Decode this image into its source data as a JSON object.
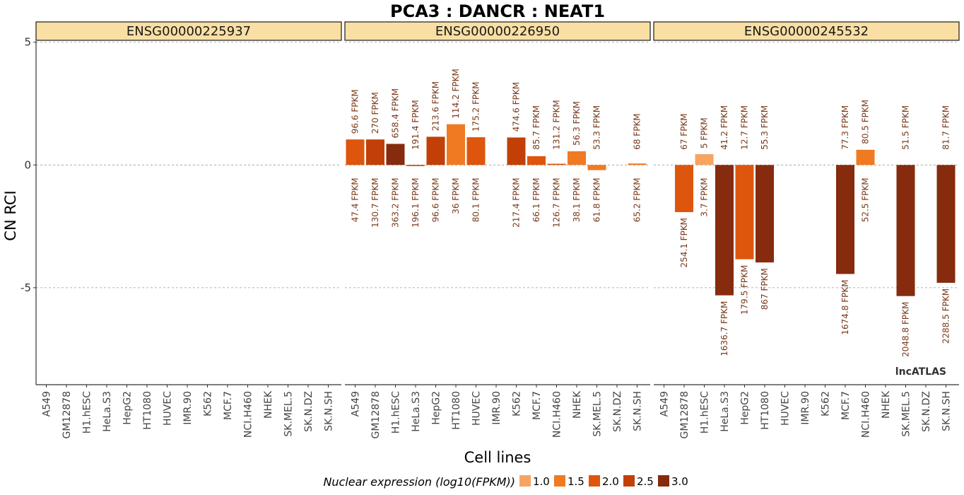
{
  "chart_data": {
    "type": "bar",
    "title": "PCA3 : DANCR : NEAT1",
    "xlabel": "Cell lines",
    "ylabel": "CN RCI",
    "yticks": [
      5,
      0,
      -5
    ],
    "ylim": [
      -8.95,
      5.05
    ],
    "grid": true,
    "categories": [
      "A549",
      "GM12878",
      "H1.hESC",
      "HeLa.S3",
      "HepG2",
      "HT1080",
      "HUVEC",
      "IMR.90",
      "K562",
      "MCF.7",
      "NCI.H460",
      "NHEK",
      "SK.MEL.5",
      "SK.N.DZ",
      "SK.N.SH"
    ],
    "panels": [
      {
        "name": "ENSG00000225937",
        "bars": []
      },
      {
        "name": "ENSG00000226950",
        "bars": [
          {
            "cell": "A549",
            "value": 1.04,
            "color_level": 2.0,
            "top_label": "96.6 FPKM",
            "bottom_label": "47.4 FPKM"
          },
          {
            "cell": "GM12878",
            "value": 1.04,
            "color_level": 2.5,
            "top_label": "270 FPKM",
            "bottom_label": "130.7 FPKM"
          },
          {
            "cell": "H1.hESC",
            "value": 0.86,
            "color_level": 3.0,
            "top_label": "658.4 FPKM",
            "bottom_label": "363.2 FPKM"
          },
          {
            "cell": "HeLa.S3",
            "value": -0.04,
            "color_level": 2.5,
            "top_label": "191.4 FPKM",
            "bottom_label": "196.1 FPKM"
          },
          {
            "cell": "HepG2",
            "value": 1.15,
            "color_level": 2.5,
            "top_label": "213.6 FPKM",
            "bottom_label": "96.6 FPKM"
          },
          {
            "cell": "HT1080",
            "value": 1.66,
            "color_level": 1.5,
            "top_label": "114.2 FPKM",
            "bottom_label": "36 FPKM"
          },
          {
            "cell": "HUVEC",
            "value": 1.13,
            "color_level": 2.0,
            "top_label": "175.2 FPKM",
            "bottom_label": "80.1 FPKM"
          },
          {
            "cell": "K562",
            "value": 1.12,
            "color_level": 2.5,
            "top_label": "474.6 FPKM",
            "bottom_label": "217.4 FPKM"
          },
          {
            "cell": "MCF.7",
            "value": 0.36,
            "color_level": 2.0,
            "top_label": "85.7 FPKM",
            "bottom_label": "66.1 FPKM"
          },
          {
            "cell": "NCI.H460",
            "value": 0.05,
            "color_level": 2.0,
            "top_label": "131.2 FPKM",
            "bottom_label": "126.7 FPKM"
          },
          {
            "cell": "NHEK",
            "value": 0.56,
            "color_level": 1.5,
            "top_label": "56.3 FPKM",
            "bottom_label": "38.1 FPKM"
          },
          {
            "cell": "SK.MEL.5",
            "value": -0.21,
            "color_level": 1.5,
            "top_label": "53.3 FPKM",
            "bottom_label": "61.8 FPKM"
          },
          {
            "cell": "SK.N.SH",
            "value": 0.06,
            "color_level": 1.5,
            "top_label": "68 FPKM",
            "bottom_label": "65.2 FPKM"
          }
        ]
      },
      {
        "name": "ENSG00000245532",
        "bars": [
          {
            "cell": "GM12878",
            "value": -1.92,
            "color_level": 2.0,
            "top_label": "67 FPKM",
            "bottom_label": "254.1 FPKM"
          },
          {
            "cell": "H1.hESC",
            "value": 0.44,
            "color_level": 1.0,
            "top_label": "5 FPKM",
            "bottom_label": "3.7 FPKM"
          },
          {
            "cell": "HeLa.S3",
            "value": -5.31,
            "color_level": 3.0,
            "top_label": "41.2 FPKM",
            "bottom_label": "1636.7 FPKM"
          },
          {
            "cell": "HepG2",
            "value": -3.84,
            "color_level": 2.0,
            "top_label": "12.7 FPKM",
            "bottom_label": "179.5 FPKM"
          },
          {
            "cell": "HT1080",
            "value": -3.97,
            "color_level": 3.0,
            "top_label": "55.3 FPKM",
            "bottom_label": "867 FPKM"
          },
          {
            "cell": "MCF.7",
            "value": -4.44,
            "color_level": 3.0,
            "top_label": "77.3 FPKM",
            "bottom_label": "1674.8 FPKM"
          },
          {
            "cell": "NCI.H460",
            "value": 0.62,
            "color_level": 1.5,
            "top_label": "80.5 FPKM",
            "bottom_label": "52.5 FPKM"
          },
          {
            "cell": "SK.MEL.5",
            "value": -5.34,
            "color_level": 3.0,
            "top_label": "51.5 FPKM",
            "bottom_label": "2048.8 FPKM"
          },
          {
            "cell": "SK.N.SH",
            "value": -4.8,
            "color_level": 3.0,
            "top_label": "81.7 FPKM",
            "bottom_label": "2288.5 FPKM"
          }
        ]
      }
    ],
    "legend": {
      "title": "Nuclear expression (log10(FPKM))",
      "position": "bottom",
      "items": [
        {
          "label": "1.0",
          "color": "#F7A463"
        },
        {
          "label": "1.5",
          "color": "#F07A22"
        },
        {
          "label": "2.0",
          "color": "#DE560D"
        },
        {
          "label": "2.5",
          "color": "#C24008"
        },
        {
          "label": "3.0",
          "color": "#862B0E"
        }
      ]
    },
    "watermark": "lncATLAS"
  },
  "colors": {
    "strip_fill": "#F9DFA3",
    "grid_line": "#9a9a9a",
    "axis_line": "#333333",
    "bar_label": "#7a3b1c"
  }
}
